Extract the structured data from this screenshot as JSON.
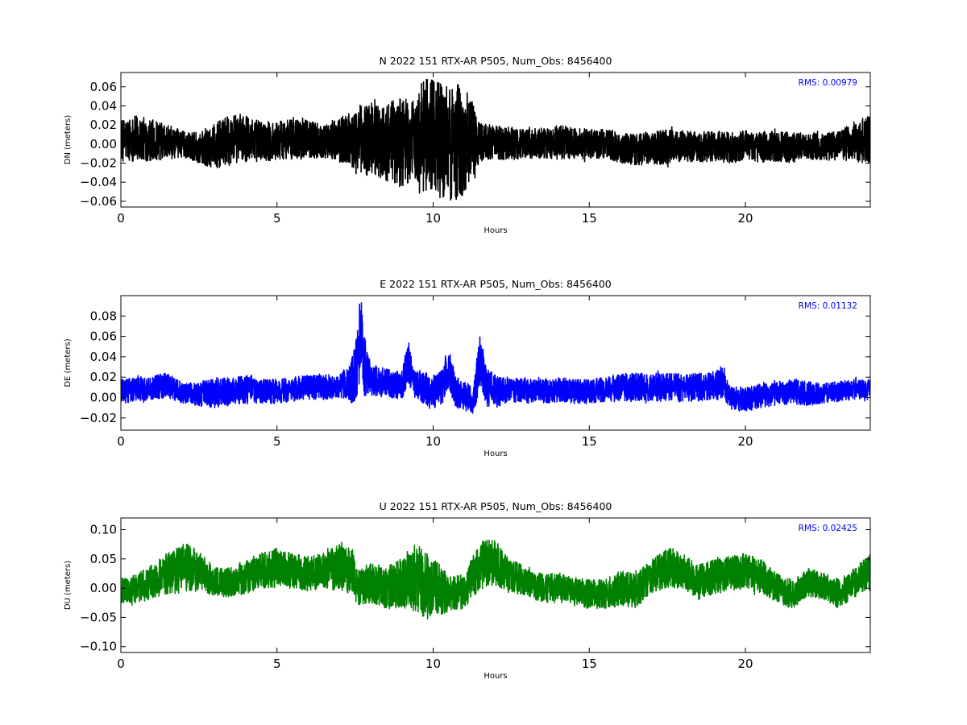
{
  "chart_data": [
    {
      "type": "line",
      "title": "N 2022 151 RTX-AR  P505, Num_Obs: 8456400",
      "xlabel": "Hours",
      "ylabel": "DN (meters)",
      "xlim": [
        0,
        24
      ],
      "ylim": [
        -0.066,
        0.075
      ],
      "xticks": [
        0,
        5,
        10,
        15,
        20
      ],
      "yticks": [
        -0.06,
        -0.04,
        -0.02,
        0.0,
        0.02,
        0.04,
        0.06
      ],
      "ytick_labels": [
        "−0.06",
        "−0.04",
        "−0.02",
        "0.00",
        "0.02",
        "0.04",
        "0.06"
      ],
      "annotation": "RMS:  0.00979",
      "grid": false,
      "color": "#000000",
      "series": [
        {
          "x": [
            0,
            0.5,
            1,
            1.5,
            2,
            2.5,
            3,
            3.5,
            4,
            4.5,
            5,
            5.5,
            6,
            6.5,
            7,
            7.5,
            7.8,
            8.2,
            8.6,
            9.0,
            9.4,
            9.7,
            10.0,
            10.3,
            10.6,
            10.9,
            11.2,
            11.5,
            12,
            12.5,
            13,
            13.5,
            14,
            14.5,
            15,
            15.5,
            16,
            16.5,
            17,
            17.5,
            18,
            18.5,
            19,
            19.5,
            20,
            20.5,
            21,
            21.5,
            22,
            22.5,
            23,
            23.5,
            24
          ],
          "center": [
            0.004,
            0.006,
            0.004,
            0.002,
            0.0,
            -0.004,
            -0.002,
            0.004,
            0.006,
            0.003,
            0.004,
            0.006,
            0.005,
            0.003,
            0.004,
            0.005,
            0.006,
            0.004,
            0.002,
            0.003,
            0.004,
            0.01,
            0.005,
            0.002,
            0.0,
            0.003,
            0.004,
            0.002,
            0.002,
            0.001,
            0.0,
            0.001,
            0.002,
            0.001,
            0.0,
            0.001,
            -0.004,
            -0.006,
            -0.004,
            -0.003,
            -0.002,
            -0.003,
            -0.002,
            -0.004,
            -0.002,
            -0.003,
            -0.002,
            -0.004,
            -0.002,
            -0.003,
            -0.001,
            0.002,
            0.004
          ],
          "amplitude": [
            0.022,
            0.024,
            0.022,
            0.018,
            0.014,
            0.016,
            0.024,
            0.026,
            0.024,
            0.022,
            0.02,
            0.022,
            0.02,
            0.018,
            0.024,
            0.03,
            0.04,
            0.038,
            0.042,
            0.05,
            0.04,
            0.06,
            0.065,
            0.06,
            0.065,
            0.06,
            0.045,
            0.02,
            0.018,
            0.018,
            0.016,
            0.016,
            0.018,
            0.016,
            0.016,
            0.016,
            0.016,
            0.016,
            0.018,
            0.018,
            0.016,
            0.016,
            0.016,
            0.016,
            0.016,
            0.016,
            0.016,
            0.016,
            0.014,
            0.014,
            0.016,
            0.022,
            0.026
          ]
        }
      ]
    },
    {
      "type": "line",
      "title": "E 2022 151 RTX-AR  P505, Num_Obs: 8456400",
      "xlabel": "Hours",
      "ylabel": "DE (meters)",
      "xlim": [
        0,
        24
      ],
      "ylim": [
        -0.032,
        0.1
      ],
      "xticks": [
        0,
        5,
        10,
        15,
        20
      ],
      "yticks": [
        -0.02,
        0.0,
        0.02,
        0.04,
        0.06,
        0.08
      ],
      "ytick_labels": [
        "−0.02",
        "0.00",
        "0.02",
        "0.04",
        "0.06",
        "0.08"
      ],
      "annotation": "RMS:  0.01132",
      "grid": false,
      "color": "#0000ff",
      "series": [
        {
          "x": [
            0,
            0.5,
            1,
            1.5,
            2,
            2.5,
            3,
            3.5,
            4,
            4.5,
            5,
            5.5,
            6,
            6.5,
            7,
            7.3,
            7.5,
            7.6,
            7.7,
            7.8,
            8.0,
            8.5,
            9.0,
            9.2,
            9.4,
            9.8,
            10.0,
            10.3,
            10.5,
            10.7,
            11.0,
            11.3,
            11.5,
            11.7,
            12.0,
            12.5,
            13,
            13.5,
            14,
            14.5,
            15,
            15.5,
            16,
            16.5,
            17,
            17.5,
            18,
            18.5,
            19,
            19.3,
            19.5,
            20,
            20.5,
            21,
            21.5,
            22,
            22.5,
            23,
            23.5,
            24
          ],
          "center": [
            0.006,
            0.008,
            0.01,
            0.012,
            0.004,
            0.004,
            0.004,
            0.006,
            0.008,
            0.006,
            0.006,
            0.008,
            0.01,
            0.01,
            0.012,
            0.014,
            0.02,
            0.04,
            0.065,
            0.03,
            0.018,
            0.014,
            0.012,
            0.035,
            0.012,
            0.008,
            0.004,
            0.01,
            0.03,
            0.006,
            0.002,
            -0.004,
            0.04,
            0.01,
            0.006,
            0.008,
            0.006,
            0.006,
            0.008,
            0.006,
            0.006,
            0.008,
            0.01,
            0.01,
            0.01,
            0.01,
            0.01,
            0.01,
            0.012,
            0.016,
            0.0,
            -0.002,
            0.002,
            0.004,
            0.006,
            0.004,
            0.004,
            0.006,
            0.008,
            0.008
          ],
          "amplitude": [
            0.012,
            0.012,
            0.012,
            0.012,
            0.01,
            0.012,
            0.014,
            0.014,
            0.014,
            0.012,
            0.012,
            0.012,
            0.012,
            0.012,
            0.012,
            0.016,
            0.03,
            0.04,
            0.03,
            0.03,
            0.016,
            0.014,
            0.014,
            0.022,
            0.014,
            0.016,
            0.018,
            0.018,
            0.02,
            0.016,
            0.014,
            0.014,
            0.028,
            0.02,
            0.016,
            0.012,
            0.012,
            0.012,
            0.012,
            0.012,
            0.012,
            0.012,
            0.014,
            0.014,
            0.014,
            0.014,
            0.014,
            0.014,
            0.014,
            0.016,
            0.012,
            0.012,
            0.012,
            0.012,
            0.012,
            0.012,
            0.01,
            0.01,
            0.01,
            0.01
          ]
        }
      ]
    },
    {
      "type": "line",
      "title": "U 2022 151 RTX-AR  P505, Num_Obs: 8456400",
      "xlabel": "Hours",
      "ylabel": "DU (meters)",
      "xlim": [
        0,
        24
      ],
      "ylim": [
        -0.11,
        0.12
      ],
      "xticks": [
        0,
        5,
        10,
        15,
        20
      ],
      "yticks": [
        -0.1,
        -0.05,
        0.0,
        0.05,
        0.1
      ],
      "ytick_labels": [
        "−0.10",
        "−0.05",
        "0.00",
        "0.05",
        "0.10"
      ],
      "annotation": "RMS:  0.02425",
      "grid": false,
      "color": "#008000",
      "series": [
        {
          "x": [
            0,
            0.5,
            1,
            1.5,
            2,
            2.5,
            3,
            3.5,
            4,
            4.5,
            5,
            5.5,
            6,
            6.5,
            7,
            7.4,
            7.6,
            8,
            8.5,
            9,
            9.5,
            9.8,
            10.1,
            10.5,
            11,
            11.5,
            12,
            12.5,
            13,
            13.5,
            14,
            14.5,
            15,
            15.5,
            16,
            16.5,
            17,
            17.5,
            18,
            18.5,
            19,
            19.5,
            20,
            20.5,
            21,
            21.5,
            22,
            22.5,
            23,
            23.5,
            24
          ],
          "center": [
            -0.005,
            0.0,
            0.01,
            0.025,
            0.035,
            0.03,
            0.01,
            0.01,
            0.02,
            0.03,
            0.035,
            0.03,
            0.025,
            0.03,
            0.035,
            0.03,
            0.0,
            0.01,
            0.0,
            0.01,
            0.02,
            0.0,
            0.0,
            -0.01,
            -0.005,
            0.04,
            0.045,
            0.02,
            0.01,
            0.0,
            0.0,
            -0.005,
            -0.01,
            -0.01,
            0.0,
            -0.005,
            0.02,
            0.035,
            0.03,
            0.01,
            0.02,
            0.025,
            0.03,
            0.02,
            0.0,
            -0.01,
            0.01,
            0.005,
            -0.01,
            0.01,
            0.03
          ],
          "amplitude": [
            0.02,
            0.025,
            0.03,
            0.035,
            0.045,
            0.035,
            0.025,
            0.025,
            0.03,
            0.03,
            0.035,
            0.03,
            0.03,
            0.03,
            0.04,
            0.04,
            0.03,
            0.035,
            0.035,
            0.045,
            0.06,
            0.06,
            0.05,
            0.03,
            0.03,
            0.04,
            0.04,
            0.03,
            0.025,
            0.025,
            0.025,
            0.025,
            0.025,
            0.025,
            0.03,
            0.03,
            0.03,
            0.035,
            0.03,
            0.03,
            0.03,
            0.03,
            0.03,
            0.03,
            0.025,
            0.025,
            0.025,
            0.025,
            0.025,
            0.025,
            0.03
          ]
        }
      ]
    }
  ]
}
